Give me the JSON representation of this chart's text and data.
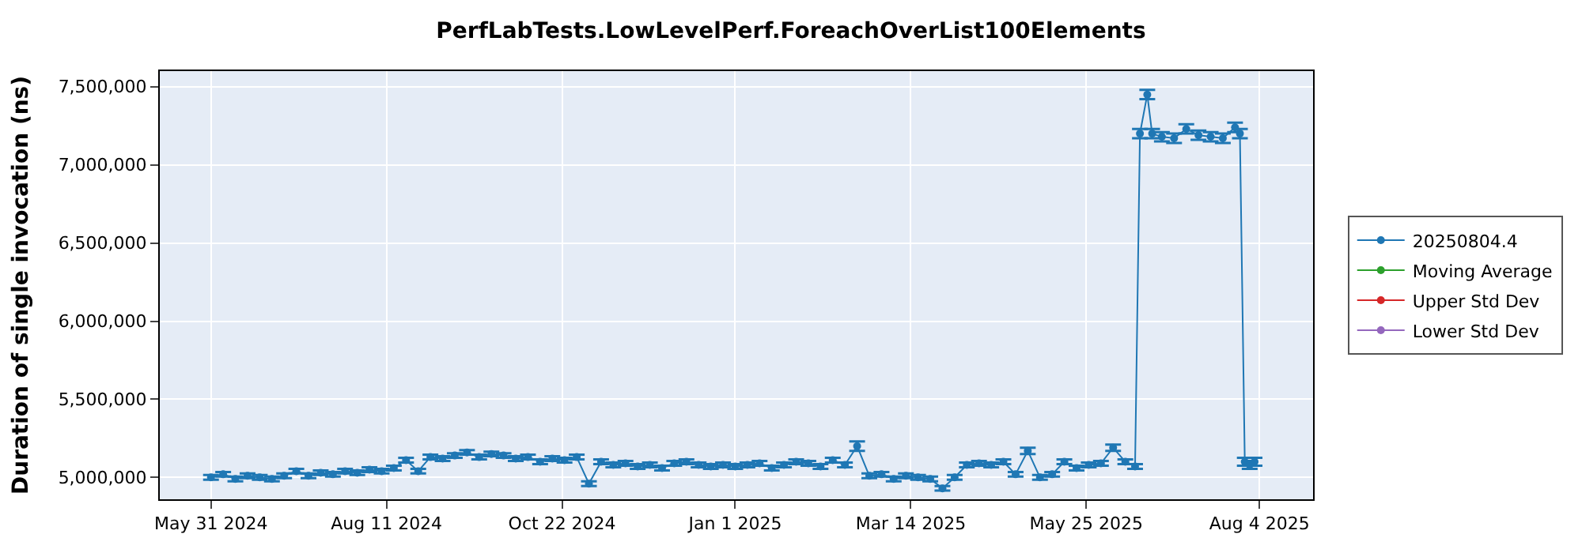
{
  "chart_data": {
    "type": "line",
    "title": "PerfLabTests.LowLevelPerf.ForeachOverList100Elements",
    "ylabel": "Duration of single invocation (ns)",
    "x": [
      "2024-05-31",
      "2024-06-05",
      "2024-06-10",
      "2024-06-15",
      "2024-06-20",
      "2024-06-25",
      "2024-06-30",
      "2024-07-05",
      "2024-07-10",
      "2024-07-15",
      "2024-07-20",
      "2024-07-25",
      "2024-07-30",
      "2024-08-04",
      "2024-08-09",
      "2024-08-14",
      "2024-08-19",
      "2024-08-24",
      "2024-08-29",
      "2024-09-03",
      "2024-09-08",
      "2024-09-13",
      "2024-09-18",
      "2024-09-23",
      "2024-09-28",
      "2024-10-03",
      "2024-10-08",
      "2024-10-13",
      "2024-10-18",
      "2024-10-23",
      "2024-10-28",
      "2024-11-02",
      "2024-11-07",
      "2024-11-12",
      "2024-11-17",
      "2024-11-22",
      "2024-11-27",
      "2024-12-02",
      "2024-12-07",
      "2024-12-12",
      "2024-12-17",
      "2024-12-22",
      "2024-12-27",
      "2025-01-01",
      "2025-01-06",
      "2025-01-11",
      "2025-01-16",
      "2025-01-21",
      "2025-01-26",
      "2025-01-31",
      "2025-02-05",
      "2025-02-10",
      "2025-02-15",
      "2025-02-20",
      "2025-02-25",
      "2025-03-02",
      "2025-03-07",
      "2025-03-12",
      "2025-03-17",
      "2025-03-22",
      "2025-03-27",
      "2025-04-01",
      "2025-04-06",
      "2025-04-11",
      "2025-04-16",
      "2025-04-21",
      "2025-04-26",
      "2025-05-01",
      "2025-05-06",
      "2025-05-11",
      "2025-05-16",
      "2025-05-21",
      "2025-05-26",
      "2025-05-31",
      "2025-06-05",
      "2025-06-10",
      "2025-06-14",
      "2025-06-16",
      "2025-06-19",
      "2025-06-21",
      "2025-06-25",
      "2025-06-30",
      "2025-07-05",
      "2025-07-10",
      "2025-07-15",
      "2025-07-20",
      "2025-07-25",
      "2025-07-27",
      "2025-07-29",
      "2025-07-31",
      "2025-08-02"
    ],
    "series": [
      {
        "name": "20250804.4",
        "color": "#1f77b4",
        "values": [
          5000000,
          5020000,
          4990000,
          5010000,
          5000000,
          4990000,
          5010000,
          5040000,
          5010000,
          5030000,
          5020000,
          5040000,
          5030000,
          5050000,
          5040000,
          5060000,
          5110000,
          5040000,
          5130000,
          5120000,
          5140000,
          5160000,
          5130000,
          5150000,
          5140000,
          5120000,
          5130000,
          5100000,
          5120000,
          5110000,
          5130000,
          4960000,
          5100000,
          5080000,
          5090000,
          5070000,
          5080000,
          5060000,
          5090000,
          5100000,
          5080000,
          5070000,
          5080000,
          5070000,
          5080000,
          5090000,
          5060000,
          5080000,
          5100000,
          5090000,
          5070000,
          5110000,
          5080000,
          5200000,
          5010000,
          5020000,
          4990000,
          5010000,
          5000000,
          4990000,
          4930000,
          5000000,
          5080000,
          5090000,
          5080000,
          5100000,
          5020000,
          5170000,
          5000000,
          5020000,
          5100000,
          5060000,
          5080000,
          5090000,
          5190000,
          5100000,
          5070000,
          7200000,
          7450000,
          7200000,
          7180000,
          7170000,
          7230000,
          7190000,
          7180000,
          7170000,
          7240000,
          7200000,
          5100000,
          5080000,
          5100000
        ],
        "errors": [
          15000,
          15000,
          15000,
          15000,
          15000,
          15000,
          15000,
          15000,
          15000,
          15000,
          15000,
          15000,
          15000,
          15000,
          15000,
          15000,
          15000,
          15000,
          15000,
          15000,
          15000,
          15000,
          15000,
          15000,
          15000,
          15000,
          15000,
          15000,
          15000,
          15000,
          15000,
          15000,
          15000,
          15000,
          15000,
          15000,
          15000,
          15000,
          15000,
          15000,
          15000,
          15000,
          15000,
          15000,
          15000,
          15000,
          15000,
          15000,
          15000,
          15000,
          15000,
          15000,
          15000,
          30000,
          15000,
          15000,
          15000,
          15000,
          15000,
          15000,
          15000,
          15000,
          15000,
          15000,
          15000,
          15000,
          15000,
          20000,
          15000,
          15000,
          15000,
          15000,
          15000,
          15000,
          20000,
          15000,
          15000,
          30000,
          30000,
          30000,
          30000,
          30000,
          30000,
          30000,
          30000,
          30000,
          30000,
          30000,
          25000,
          25000,
          25000
        ]
      },
      {
        "name": "Moving Average",
        "color": "#2ca02c",
        "values": [
          null,
          null,
          null,
          null,
          null,
          null,
          null,
          null,
          null,
          null,
          null,
          null,
          null,
          null,
          null,
          null,
          null,
          null,
          null,
          null,
          null,
          null,
          null,
          null,
          null,
          null,
          null,
          null,
          null,
          null,
          null,
          null,
          null,
          null,
          null,
          null,
          null,
          null,
          null,
          null,
          null,
          null,
          null,
          null,
          null,
          null,
          null,
          null,
          null,
          null,
          null,
          null,
          null,
          null,
          null,
          null,
          null,
          null,
          null,
          null,
          null,
          null,
          null,
          null,
          null,
          null,
          null,
          null,
          null,
          null,
          null,
          null,
          null,
          null,
          null,
          null,
          null,
          null,
          null,
          null,
          null,
          null,
          null,
          null,
          null,
          null,
          null,
          null,
          null,
          null,
          null
        ]
      },
      {
        "name": "Upper Std Dev",
        "color": "#d62728",
        "values": [
          null,
          null,
          null,
          null,
          null,
          null,
          null,
          null,
          null,
          null,
          null,
          null,
          null,
          null,
          null,
          null,
          null,
          null,
          null,
          null,
          null,
          null,
          null,
          null,
          null,
          null,
          null,
          null,
          null,
          null,
          null,
          null,
          null,
          null,
          null,
          null,
          null,
          null,
          null,
          null,
          null,
          null,
          null,
          null,
          null,
          null,
          null,
          null,
          null,
          null,
          null,
          null,
          null,
          null,
          null,
          null,
          null,
          null,
          null,
          null,
          null,
          null,
          null,
          null,
          null,
          null,
          null,
          null,
          null,
          null,
          null,
          null,
          null,
          null,
          null,
          null,
          null,
          null,
          null,
          null,
          null,
          null,
          null,
          null,
          null,
          null,
          null,
          null,
          null,
          null,
          null
        ]
      },
      {
        "name": "Lower Std Dev",
        "color": "#9467bd",
        "values": [
          null,
          null,
          null,
          null,
          null,
          null,
          null,
          null,
          null,
          null,
          null,
          null,
          null,
          null,
          null,
          null,
          null,
          null,
          null,
          null,
          null,
          null,
          null,
          null,
          null,
          null,
          null,
          null,
          null,
          null,
          null,
          null,
          null,
          null,
          null,
          null,
          null,
          null,
          null,
          null,
          null,
          null,
          null,
          null,
          null,
          null,
          null,
          null,
          null,
          null,
          null,
          null,
          null,
          null,
          null,
          null,
          null,
          null,
          null,
          null,
          null,
          null,
          null,
          null,
          null,
          null,
          null,
          null,
          null,
          null,
          null,
          null,
          null,
          null,
          null,
          null,
          null,
          null,
          null,
          null,
          null,
          null,
          null,
          null,
          null,
          null,
          null,
          null,
          null,
          null,
          null
        ]
      }
    ],
    "xlim": [
      "2024-05-10",
      "2025-08-26"
    ],
    "xticks": [
      {
        "value": "2024-05-31",
        "label": "May 31 2024"
      },
      {
        "value": "2024-08-11",
        "label": "Aug 11 2024"
      },
      {
        "value": "2024-10-22",
        "label": "Oct 22 2024"
      },
      {
        "value": "2025-01-01",
        "label": "Jan 1 2025"
      },
      {
        "value": "2025-03-14",
        "label": "Mar 14 2025"
      },
      {
        "value": "2025-05-25",
        "label": "May 25 2025"
      },
      {
        "value": "2025-08-04",
        "label": "Aug 4 2025"
      }
    ],
    "ylim": [
      4860000,
      7600000
    ],
    "yticks": [
      {
        "value": 5000000,
        "label": "5,000,000"
      },
      {
        "value": 5500000,
        "label": "5,500,000"
      },
      {
        "value": 6000000,
        "label": "6,000,000"
      },
      {
        "value": 6500000,
        "label": "6,500,000"
      },
      {
        "value": 7000000,
        "label": "7,000,000"
      },
      {
        "value": 7500000,
        "label": "7,500,000"
      }
    ],
    "grid": true,
    "legend": "right",
    "marker": "circle",
    "line_style": "solid"
  }
}
